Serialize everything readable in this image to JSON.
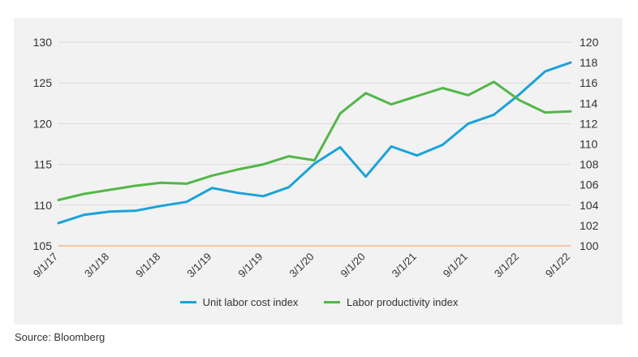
{
  "chart_data": {
    "type": "line",
    "x": [
      "9/1/17",
      "12/1/17",
      "3/1/18",
      "6/1/18",
      "9/1/18",
      "12/1/18",
      "3/1/19",
      "6/1/19",
      "9/1/19",
      "12/1/19",
      "3/1/20",
      "6/1/20",
      "9/1/20",
      "12/1/20",
      "3/1/21",
      "6/1/21",
      "9/1/21",
      "12/1/21",
      "3/1/22",
      "6/1/22",
      "9/1/22"
    ],
    "x_tick_labels": [
      "9/1/17",
      "3/1/18",
      "9/1/18",
      "3/1/19",
      "9/1/19",
      "3/1/20",
      "9/1/20",
      "3/1/21",
      "9/1/21",
      "3/1/22",
      "9/1/22"
    ],
    "left_axis": {
      "ticks": [
        "130",
        "125",
        "120",
        "115",
        "110",
        "105"
      ],
      "ylim": [
        105,
        130
      ]
    },
    "right_axis": {
      "ticks": [
        "120",
        "118",
        "116",
        "114",
        "112",
        "110",
        "108",
        "106",
        "104",
        "102",
        "100"
      ],
      "ylim": [
        100,
        120
      ]
    },
    "series": [
      {
        "name": "Unit labor cost index",
        "axis": "left",
        "color": "#1aa3d9",
        "values": [
          107.8,
          108.8,
          109.2,
          109.3,
          109.9,
          110.4,
          112.1,
          111.5,
          111.1,
          112.2,
          115.1,
          117.1,
          113.5,
          117.2,
          116.1,
          117.4,
          120.0,
          121.1,
          123.6,
          126.4,
          127.5
        ]
      },
      {
        "name": "Labor productivity index",
        "axis": "right",
        "color": "#52b748",
        "values": [
          104.5,
          105.1,
          105.5,
          105.9,
          106.2,
          106.1,
          106.9,
          107.5,
          108.0,
          108.8,
          108.4,
          113.0,
          115.0,
          113.9,
          114.7,
          115.5,
          114.8,
          116.1,
          114.3,
          113.1,
          113.2
        ]
      }
    ],
    "baseline": {
      "axis": "left",
      "value": 105,
      "color": "#f2b48a"
    },
    "grid": true,
    "legend_position": "bottom"
  },
  "source": "Source: Bloomberg"
}
